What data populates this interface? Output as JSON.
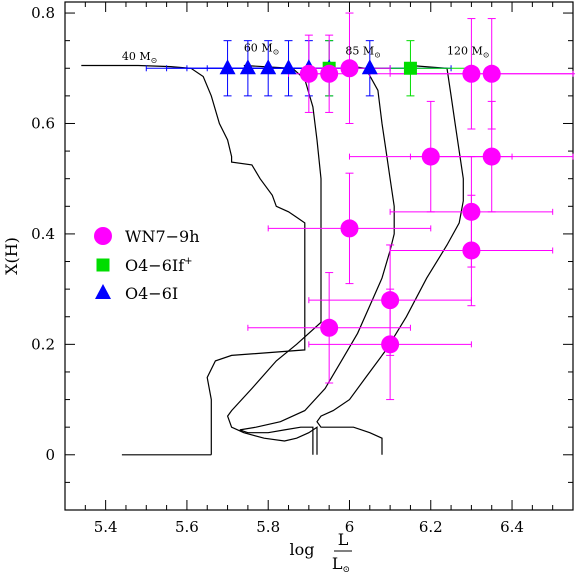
{
  "chart_data": {
    "type": "scatter",
    "xlabel": "log",
    "xlabel_fraction": {
      "numerator": "L",
      "denominator": "L",
      "denominator_sub": "⊙"
    },
    "ylabel": "X(H)",
    "xlim": [
      5.3,
      6.55
    ],
    "ylim": [
      -0.1,
      0.82
    ],
    "x_ticks": [
      {
        "value": 5.4,
        "label": "5.4"
      },
      {
        "value": 5.6,
        "label": "5.6"
      },
      {
        "value": 5.8,
        "label": "5.8"
      },
      {
        "value": 6.0,
        "label": "6"
      },
      {
        "value": 6.2,
        "label": "6.2"
      },
      {
        "value": 6.4,
        "label": "6.4"
      }
    ],
    "y_ticks": [
      {
        "value": 0,
        "label": "0"
      },
      {
        "value": 0.2,
        "label": "0.2"
      },
      {
        "value": 0.4,
        "label": "0.4"
      },
      {
        "value": 0.6,
        "label": "0.6"
      },
      {
        "value": 0.8,
        "label": "0.8"
      }
    ],
    "legend": {
      "position": "left-middle",
      "entries": [
        {
          "label": "WN7−9h",
          "marker": "circle",
          "color": "#ff00ff"
        },
        {
          "label": "O4−6If",
          "sup": "+",
          "marker": "square",
          "color": "#00dd00"
        },
        {
          "label": "O4−6I",
          "marker": "triangle",
          "color": "#0000ff"
        }
      ]
    },
    "track_labels": [
      {
        "mass": "40",
        "unit": "M",
        "sub": "⊙",
        "x": 5.44,
        "y": 0.715
      },
      {
        "mass": "60",
        "unit": "M",
        "sub": "⊙",
        "x": 5.74,
        "y": 0.73
      },
      {
        "mass": "85",
        "unit": "M",
        "sub": "⊙",
        "x": 5.99,
        "y": 0.725
      },
      {
        "mass": "120",
        "unit": "M",
        "sub": "⊙",
        "x": 6.24,
        "y": 0.725
      }
    ],
    "tracks": [
      {
        "mass": 40,
        "points": [
          [
            5.34,
            0.705
          ],
          [
            5.48,
            0.705
          ],
          [
            5.56,
            0.703
          ],
          [
            5.61,
            0.7
          ],
          [
            5.64,
            0.685
          ],
          [
            5.66,
            0.65
          ],
          [
            5.68,
            0.6
          ],
          [
            5.7,
            0.57
          ],
          [
            5.71,
            0.54
          ],
          [
            5.71,
            0.53
          ],
          [
            5.76,
            0.525
          ],
          [
            5.78,
            0.5
          ],
          [
            5.81,
            0.47
          ],
          [
            5.82,
            0.45
          ],
          [
            5.85,
            0.44
          ],
          [
            5.87,
            0.43
          ],
          [
            5.89,
            0.42
          ],
          [
            5.89,
            0.38
          ],
          [
            5.89,
            0.3
          ],
          [
            5.89,
            0.19
          ],
          [
            5.71,
            0.18
          ],
          [
            5.67,
            0.17
          ],
          [
            5.65,
            0.14
          ],
          [
            5.66,
            0.1
          ],
          [
            5.66,
            0.02
          ],
          [
            5.66,
            0
          ]
        ]
      },
      {
        "mass": 60,
        "points": [
          [
            5.74,
            0.705
          ],
          [
            5.86,
            0.7
          ],
          [
            5.89,
            0.68
          ],
          [
            5.91,
            0.63
          ],
          [
            5.92,
            0.57
          ],
          [
            5.93,
            0.5
          ],
          [
            5.93,
            0.45
          ],
          [
            5.93,
            0.42
          ],
          [
            5.93,
            0.38
          ],
          [
            5.93,
            0.3
          ],
          [
            5.93,
            0.24
          ],
          [
            5.87,
            0.2
          ],
          [
            5.82,
            0.17
          ],
          [
            5.76,
            0.12
          ],
          [
            5.71,
            0.08
          ],
          [
            5.7,
            0.07
          ],
          [
            5.71,
            0.05
          ],
          [
            5.74,
            0.04
          ],
          [
            5.79,
            0.03
          ],
          [
            5.84,
            0.025
          ],
          [
            5.87,
            0.03
          ],
          [
            5.9,
            0.04
          ],
          [
            5.92,
            0.05
          ],
          [
            5.92,
            0.01
          ],
          [
            5.92,
            0
          ]
        ]
      },
      {
        "mass": 85,
        "points": [
          [
            5.99,
            0.705
          ],
          [
            6.04,
            0.7
          ],
          [
            6.07,
            0.66
          ],
          [
            6.08,
            0.6
          ],
          [
            6.09,
            0.55
          ],
          [
            6.1,
            0.5
          ],
          [
            6.11,
            0.45
          ],
          [
            6.11,
            0.4
          ],
          [
            6.1,
            0.37
          ],
          [
            6.08,
            0.32
          ],
          [
            6.05,
            0.27
          ],
          [
            6.02,
            0.22
          ],
          [
            5.98,
            0.17
          ],
          [
            5.94,
            0.12
          ],
          [
            5.89,
            0.08
          ],
          [
            5.83,
            0.06
          ],
          [
            5.77,
            0.05
          ],
          [
            5.73,
            0.045
          ],
          [
            5.75,
            0.04
          ],
          [
            5.8,
            0.04
          ],
          [
            5.84,
            0.045
          ],
          [
            5.88,
            0.05
          ],
          [
            5.91,
            0.05
          ],
          [
            5.91,
            0.02
          ],
          [
            5.91,
            0
          ]
        ]
      },
      {
        "mass": 120,
        "points": [
          [
            6.15,
            0.705
          ],
          [
            6.24,
            0.7
          ],
          [
            6.25,
            0.65
          ],
          [
            6.26,
            0.6
          ],
          [
            6.27,
            0.55
          ],
          [
            6.28,
            0.5
          ],
          [
            6.28,
            0.46
          ],
          [
            6.27,
            0.42
          ],
          [
            6.24,
            0.38
          ],
          [
            6.19,
            0.32
          ],
          [
            6.14,
            0.25
          ],
          [
            6.09,
            0.19
          ],
          [
            6.04,
            0.14
          ],
          [
            6.0,
            0.1
          ],
          [
            5.96,
            0.08
          ],
          [
            5.93,
            0.07
          ],
          [
            5.92,
            0.06
          ],
          [
            5.93,
            0.05
          ],
          [
            5.96,
            0.05
          ],
          [
            5.99,
            0.05
          ],
          [
            6.01,
            0.05
          ],
          [
            6.03,
            0.045
          ],
          [
            6.05,
            0.04
          ],
          [
            6.08,
            0.03
          ],
          [
            6.08,
            0
          ]
        ]
      },
      {
        "mass": 0,
        "points": [
          [
            5.44,
            0
          ],
          [
            5.66,
            0
          ]
        ]
      }
    ],
    "series": [
      {
        "name": "WN7−9h",
        "marker": "circle",
        "color": "#ff00ff",
        "points": [
          {
            "x": 5.9,
            "y": 0.69,
            "xerr": 0.05,
            "yerr": 0.07
          },
          {
            "x": 5.95,
            "y": 0.69,
            "xerr": 0.05,
            "yerr": 0.07
          },
          {
            "x": 6.0,
            "y": 0.7,
            "xerr": 0.1,
            "yerr": 0.1
          },
          {
            "x": 6.3,
            "y": 0.69,
            "xerr": 0.25,
            "yerr": 0.1
          },
          {
            "x": 6.35,
            "y": 0.69,
            "xerr": 0.25,
            "yerr": 0.1
          },
          {
            "x": 6.2,
            "y": 0.54,
            "xerr": 0.2,
            "yerr": 0.1
          },
          {
            "x": 6.35,
            "y": 0.54,
            "xerr": 0.2,
            "yerr": 0.1
          },
          {
            "x": 6.3,
            "y": 0.44,
            "xerr": 0.2,
            "yerr": 0.1
          },
          {
            "x": 6.0,
            "y": 0.41,
            "xerr": 0.2,
            "yerr": 0.1
          },
          {
            "x": 6.3,
            "y": 0.37,
            "xerr": 0.2,
            "yerr": 0.1
          },
          {
            "x": 6.1,
            "y": 0.28,
            "xerr": 0.2,
            "yerr": 0.1
          },
          {
            "x": 5.95,
            "y": 0.23,
            "xerr": 0.2,
            "yerr": 0.1
          },
          {
            "x": 6.1,
            "y": 0.2,
            "xerr": 0.2,
            "yerr": 0.1
          }
        ]
      },
      {
        "name": "O4−6If+",
        "marker": "square",
        "color": "#00dd00",
        "points": [
          {
            "x": 5.95,
            "y": 0.7,
            "xerr": 0,
            "yerr": 0.05
          },
          {
            "x": 6.15,
            "y": 0.7,
            "xerr": 0.15,
            "yerr": 0.05
          }
        ]
      },
      {
        "name": "O4−6I",
        "marker": "triangle",
        "color": "#0000ff",
        "points": [
          {
            "x": 5.7,
            "y": 0.7,
            "xerr": 0.2,
            "yerr": 0.05
          },
          {
            "x": 5.75,
            "y": 0.7,
            "xerr": 0.2,
            "yerr": 0.05
          },
          {
            "x": 5.8,
            "y": 0.7,
            "xerr": 0.2,
            "yerr": 0.05
          },
          {
            "x": 5.85,
            "y": 0.7,
            "xerr": 0.2,
            "yerr": 0.05
          },
          {
            "x": 5.9,
            "y": 0.7,
            "xerr": 0.2,
            "yerr": 0.05
          },
          {
            "x": 5.95,
            "y": 0.7,
            "xerr": 0.2,
            "yerr": 0.05
          },
          {
            "x": 6.05,
            "y": 0.7,
            "xerr": 0.2,
            "yerr": 0.05
          }
        ]
      }
    ]
  }
}
